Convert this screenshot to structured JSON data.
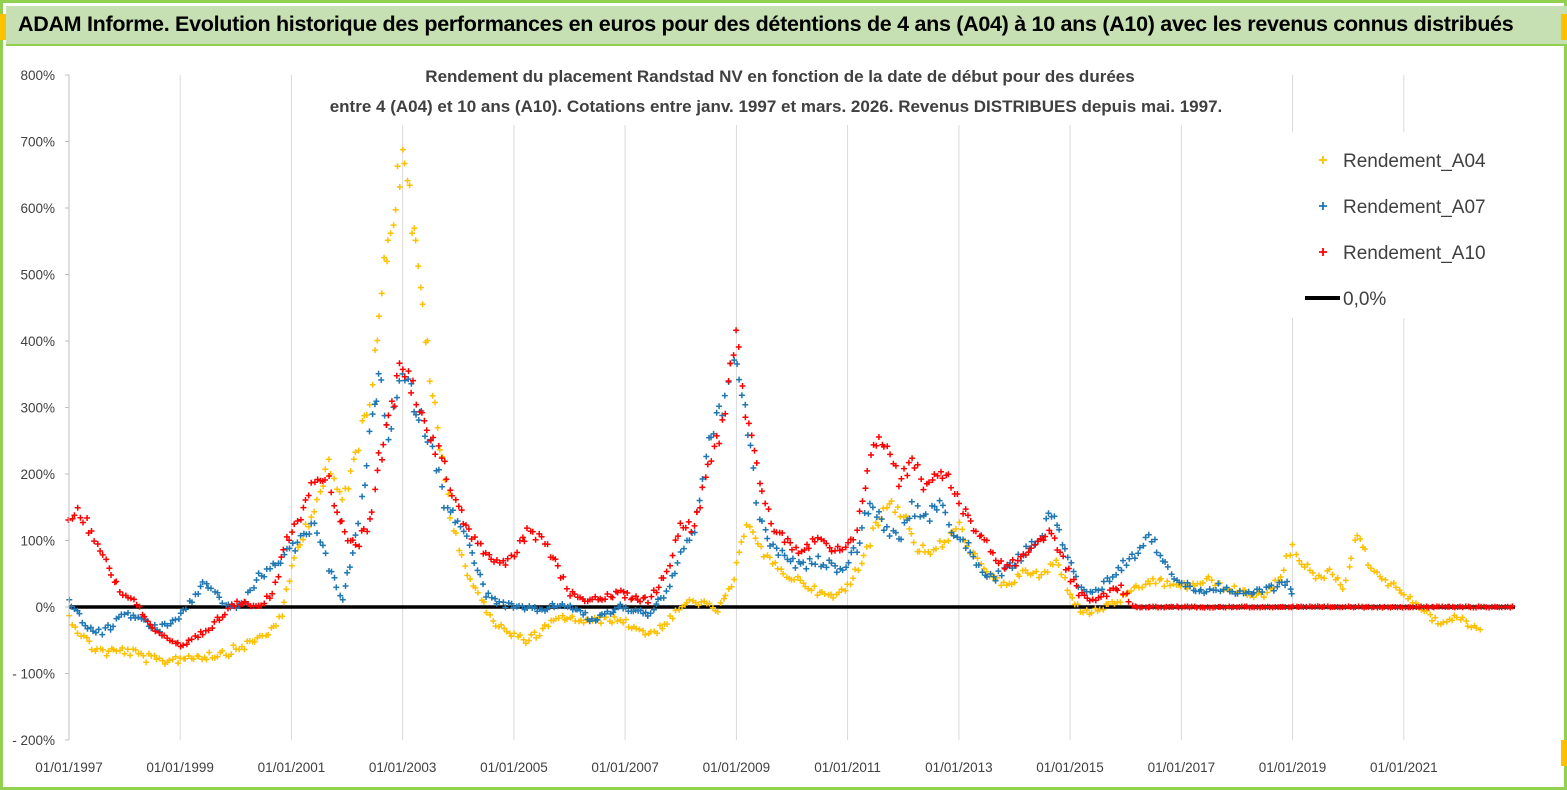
{
  "banner": {
    "title": "ADAM Informe. Evolution historique des performances en euros pour des détentions de 4 ans (A04) à 10 ans (A10) avec les revenus connus distribués"
  },
  "colors": {
    "frame": "#92d050",
    "banner_bg": "#c6e0b4",
    "A04": "#ffc000",
    "A07": "#1f77b4",
    "A10": "#ff0000",
    "zero_line": "#000000"
  },
  "chart_data": {
    "type": "scatter",
    "title_line1": "Rendement du placement Randstad NV en fonction de la date de début pour des durées",
    "title_line2": "entre 4 (A04) et 10 ans (A10).  Cotations entre janv. 1997 et mars. 2026. Revenus DISTRIBUES depuis mai. 1997.",
    "xlabel": "",
    "ylabel": "",
    "x_range": [
      "1997-01-01",
      "2023-01-01"
    ],
    "y_range_pct": [
      -200,
      800
    ],
    "y_ticks": [
      "800%",
      "700%",
      "600%",
      "500%",
      "400%",
      "300%",
      "200%",
      "100%",
      "0%",
      "- 100%",
      "- 200%"
    ],
    "x_ticks": [
      "01/01/1997",
      "01/01/1999",
      "01/01/2001",
      "01/01/2003",
      "01/01/2005",
      "01/01/2007",
      "01/01/2009",
      "01/01/2011",
      "01/01/2013",
      "01/01/2015",
      "01/01/2017",
      "01/01/2019",
      "01/01/2021"
    ],
    "grid": "vertical",
    "legend_position": "top-right",
    "marker": "+",
    "series": [
      {
        "name": "Rendement_A04",
        "color": "#ffc000",
        "points": [
          [
            "1997-01-01",
            -15
          ],
          [
            "1997-03-01",
            -35
          ],
          [
            "1997-06-01",
            -60
          ],
          [
            "1997-09-01",
            -68
          ],
          [
            "1998-01-01",
            -65
          ],
          [
            "1998-04-01",
            -72
          ],
          [
            "1998-08-01",
            -82
          ],
          [
            "1998-12-01",
            -78
          ],
          [
            "1999-04-01",
            -74
          ],
          [
            "1999-08-01",
            -72
          ],
          [
            "1999-12-01",
            -66
          ],
          [
            "2000-04-01",
            -55
          ],
          [
            "2000-08-01",
            -38
          ],
          [
            "2000-11-01",
            -15
          ],
          [
            "2001-01-01",
            60
          ],
          [
            "2001-03-01",
            100
          ],
          [
            "2001-06-01",
            150
          ],
          [
            "2001-09-01",
            210
          ],
          [
            "2001-12-01",
            160
          ],
          [
            "2002-03-01",
            230
          ],
          [
            "2002-06-01",
            320
          ],
          [
            "2002-08-01",
            450
          ],
          [
            "2002-10-01",
            560
          ],
          [
            "2002-12-01",
            640
          ],
          [
            "2003-01-15",
            690
          ],
          [
            "2003-03-01",
            580
          ],
          [
            "2003-05-01",
            480
          ],
          [
            "2003-07-01",
            350
          ],
          [
            "2003-09-01",
            240
          ],
          [
            "2003-12-01",
            120
          ],
          [
            "2004-03-01",
            50
          ],
          [
            "2004-06-01",
            10
          ],
          [
            "2004-09-01",
            -25
          ],
          [
            "2004-12-01",
            -40
          ],
          [
            "2005-03-01",
            -50
          ],
          [
            "2005-06-01",
            -42
          ],
          [
            "2005-09-01",
            -25
          ],
          [
            "2005-12-01",
            -15
          ],
          [
            "2006-03-01",
            -20
          ],
          [
            "2006-06-01",
            -22
          ],
          [
            "2006-09-01",
            -18
          ],
          [
            "2006-12-01",
            -20
          ],
          [
            "2007-03-01",
            -30
          ],
          [
            "2007-06-01",
            -40
          ],
          [
            "2007-09-01",
            -30
          ],
          [
            "2007-12-01",
            -10
          ],
          [
            "2008-03-01",
            10
          ],
          [
            "2008-06-01",
            5
          ],
          [
            "2008-09-01",
            -5
          ],
          [
            "2008-12-01",
            30
          ],
          [
            "2009-02-01",
            90
          ],
          [
            "2009-04-01",
            130
          ],
          [
            "2009-07-01",
            80
          ],
          [
            "2009-10-01",
            55
          ],
          [
            "2010-01-01",
            45
          ],
          [
            "2010-04-01",
            35
          ],
          [
            "2010-07-01",
            20
          ],
          [
            "2010-10-01",
            15
          ],
          [
            "2011-01-01",
            30
          ],
          [
            "2011-04-01",
            70
          ],
          [
            "2011-07-01",
            120
          ],
          [
            "2011-10-01",
            160
          ],
          [
            "2012-01-01",
            140
          ],
          [
            "2012-04-01",
            90
          ],
          [
            "2012-07-01",
            80
          ],
          [
            "2012-10-01",
            100
          ],
          [
            "2013-01-01",
            120
          ],
          [
            "2013-04-01",
            80
          ],
          [
            "2013-07-01",
            50
          ],
          [
            "2013-10-01",
            35
          ],
          [
            "2014-01-01",
            40
          ],
          [
            "2014-04-01",
            55
          ],
          [
            "2014-07-01",
            45
          ],
          [
            "2014-10-01",
            70
          ],
          [
            "2015-01-01",
            20
          ],
          [
            "2015-04-01",
            -10
          ],
          [
            "2015-07-01",
            -5
          ],
          [
            "2015-10-01",
            5
          ],
          [
            "2016-01-01",
            15
          ],
          [
            "2016-04-01",
            30
          ],
          [
            "2016-07-01",
            40
          ],
          [
            "2016-10-01",
            35
          ],
          [
            "2017-01-01",
            30
          ],
          [
            "2017-04-01",
            35
          ],
          [
            "2017-07-01",
            40
          ],
          [
            "2017-10-01",
            30
          ],
          [
            "2018-01-01",
            25
          ],
          [
            "2018-04-01",
            20
          ],
          [
            "2018-07-01",
            15
          ],
          [
            "2018-10-01",
            40
          ],
          [
            "2019-01-01",
            90
          ],
          [
            "2019-03-01",
            70
          ],
          [
            "2019-06-01",
            40
          ],
          [
            "2019-09-01",
            55
          ],
          [
            "2019-12-01",
            30
          ],
          [
            "2020-03-01",
            110
          ],
          [
            "2020-06-01",
            60
          ],
          [
            "2020-09-01",
            40
          ],
          [
            "2020-12-01",
            25
          ],
          [
            "2021-03-01",
            10
          ],
          [
            "2021-06-01",
            -10
          ],
          [
            "2021-09-01",
            -25
          ],
          [
            "2021-12-01",
            -15
          ],
          [
            "2022-03-01",
            -25
          ],
          [
            "2022-06-01",
            -35
          ]
        ]
      },
      {
        "name": "Rendement_A07",
        "color": "#1f77b4",
        "points": [
          [
            "1997-01-01",
            10
          ],
          [
            "1997-04-01",
            -20
          ],
          [
            "1997-07-01",
            -40
          ],
          [
            "1997-10-01",
            -30
          ],
          [
            "1998-01-01",
            -10
          ],
          [
            "1998-04-01",
            -15
          ],
          [
            "1998-08-01",
            -35
          ],
          [
            "1998-12-01",
            -20
          ],
          [
            "1999-03-01",
            5
          ],
          [
            "1999-06-01",
            35
          ],
          [
            "1999-09-01",
            20
          ],
          [
            "1999-12-01",
            -5
          ],
          [
            "2000-03-01",
            10
          ],
          [
            "2000-06-01",
            45
          ],
          [
            "2000-09-01",
            60
          ],
          [
            "2000-12-01",
            80
          ],
          [
            "2001-03-01",
            100
          ],
          [
            "2001-06-01",
            130
          ],
          [
            "2001-09-01",
            60
          ],
          [
            "2001-12-01",
            10
          ],
          [
            "2002-03-01",
            100
          ],
          [
            "2002-06-01",
            250
          ],
          [
            "2002-08-01",
            350
          ],
          [
            "2002-10-01",
            250
          ],
          [
            "2003-01-01",
            350
          ],
          [
            "2003-04-01",
            300
          ],
          [
            "2003-07-01",
            250
          ],
          [
            "2003-10-01",
            160
          ],
          [
            "2004-01-01",
            130
          ],
          [
            "2004-04-01",
            80
          ],
          [
            "2004-07-01",
            20
          ],
          [
            "2004-10-01",
            5
          ],
          [
            "2005-01-01",
            0
          ],
          [
            "2005-06-01",
            -5
          ],
          [
            "2005-12-01",
            5
          ],
          [
            "2006-06-01",
            -20
          ],
          [
            "2006-12-01",
            0
          ],
          [
            "2007-06-01",
            -10
          ],
          [
            "2007-10-01",
            20
          ],
          [
            "2008-01-01",
            80
          ],
          [
            "2008-04-01",
            110
          ],
          [
            "2008-07-01",
            250
          ],
          [
            "2008-10-01",
            300
          ],
          [
            "2009-01-01",
            380
          ],
          [
            "2009-03-01",
            300
          ],
          [
            "2009-06-01",
            130
          ],
          [
            "2009-09-01",
            90
          ],
          [
            "2009-12-01",
            70
          ],
          [
            "2010-03-01",
            60
          ],
          [
            "2010-06-01",
            70
          ],
          [
            "2010-09-01",
            65
          ],
          [
            "2010-12-01",
            55
          ],
          [
            "2011-03-01",
            90
          ],
          [
            "2011-06-01",
            160
          ],
          [
            "2011-09-01",
            120
          ],
          [
            "2011-12-01",
            100
          ],
          [
            "2012-03-01",
            150
          ],
          [
            "2012-06-01",
            130
          ],
          [
            "2012-09-01",
            160
          ],
          [
            "2012-12-01",
            110
          ],
          [
            "2013-03-01",
            90
          ],
          [
            "2013-06-01",
            50
          ],
          [
            "2013-09-01",
            45
          ],
          [
            "2013-12-01",
            60
          ],
          [
            "2014-03-01",
            80
          ],
          [
            "2014-06-01",
            100
          ],
          [
            "2014-09-01",
            140
          ],
          [
            "2014-12-01",
            90
          ],
          [
            "2015-03-01",
            30
          ],
          [
            "2015-06-01",
            20
          ],
          [
            "2015-09-01",
            40
          ],
          [
            "2015-12-01",
            60
          ],
          [
            "2016-03-01",
            80
          ],
          [
            "2016-06-01",
            110
          ],
          [
            "2016-09-01",
            70
          ],
          [
            "2016-12-01",
            40
          ],
          [
            "2017-03-01",
            30
          ],
          [
            "2017-06-01",
            25
          ],
          [
            "2017-09-01",
            30
          ],
          [
            "2017-12-01",
            20
          ],
          [
            "2018-03-01",
            20
          ],
          [
            "2018-06-01",
            25
          ],
          [
            "2018-09-01",
            30
          ],
          [
            "2018-12-01",
            40
          ],
          [
            "2019-01-15",
            5
          ]
        ]
      },
      {
        "name": "Rendement_A10",
        "color": "#ff0000",
        "points": [
          [
            "1997-01-01",
            130
          ],
          [
            "1997-03-01",
            150
          ],
          [
            "1997-06-01",
            110
          ],
          [
            "1997-09-01",
            70
          ],
          [
            "1997-12-01",
            25
          ],
          [
            "1998-03-01",
            10
          ],
          [
            "1998-06-01",
            -20
          ],
          [
            "1998-09-01",
            -45
          ],
          [
            "1998-12-01",
            -60
          ],
          [
            "1999-03-01",
            -55
          ],
          [
            "1999-06-01",
            -40
          ],
          [
            "1999-09-01",
            -20
          ],
          [
            "1999-12-01",
            0
          ],
          [
            "2000-03-01",
            10
          ],
          [
            "2000-06-01",
            0
          ],
          [
            "2000-09-01",
            20
          ],
          [
            "2000-12-01",
            100
          ],
          [
            "2001-03-01",
            140
          ],
          [
            "2001-06-01",
            200
          ],
          [
            "2001-09-01",
            190
          ],
          [
            "2001-12-01",
            120
          ],
          [
            "2002-03-01",
            90
          ],
          [
            "2002-06-01",
            130
          ],
          [
            "2002-08-01",
            220
          ],
          [
            "2002-10-01",
            280
          ],
          [
            "2003-01-01",
            370
          ],
          [
            "2003-04-01",
            320
          ],
          [
            "2003-07-01",
            260
          ],
          [
            "2003-10-01",
            210
          ],
          [
            "2004-01-01",
            150
          ],
          [
            "2004-04-01",
            110
          ],
          [
            "2004-07-01",
            80
          ],
          [
            "2004-10-01",
            60
          ],
          [
            "2005-01-01",
            80
          ],
          [
            "2005-04-01",
            110
          ],
          [
            "2005-07-01",
            100
          ],
          [
            "2005-10-01",
            70
          ],
          [
            "2006-01-01",
            20
          ],
          [
            "2006-06-01",
            10
          ],
          [
            "2006-12-01",
            20
          ],
          [
            "2007-06-01",
            10
          ],
          [
            "2007-10-01",
            50
          ],
          [
            "2008-01-01",
            130
          ],
          [
            "2008-04-01",
            120
          ],
          [
            "2008-07-01",
            220
          ],
          [
            "2008-10-01",
            270
          ],
          [
            "2009-01-01",
            430
          ],
          [
            "2009-03-01",
            300
          ],
          [
            "2009-06-01",
            180
          ],
          [
            "2009-09-01",
            120
          ],
          [
            "2009-12-01",
            100
          ],
          [
            "2010-03-01",
            80
          ],
          [
            "2010-06-01",
            100
          ],
          [
            "2010-09-01",
            90
          ],
          [
            "2010-12-01",
            80
          ],
          [
            "2011-03-01",
            110
          ],
          [
            "2011-06-01",
            240
          ],
          [
            "2011-09-01",
            250
          ],
          [
            "2011-12-01",
            190
          ],
          [
            "2012-03-01",
            220
          ],
          [
            "2012-06-01",
            180
          ],
          [
            "2012-09-01",
            210
          ],
          [
            "2012-12-01",
            180
          ],
          [
            "2013-03-01",
            130
          ],
          [
            "2013-06-01",
            110
          ],
          [
            "2013-09-01",
            70
          ],
          [
            "2013-12-01",
            60
          ],
          [
            "2014-03-01",
            80
          ],
          [
            "2014-06-01",
            100
          ],
          [
            "2014-09-01",
            110
          ],
          [
            "2014-12-01",
            60
          ],
          [
            "2015-03-01",
            20
          ],
          [
            "2015-06-01",
            10
          ],
          [
            "2015-09-01",
            20
          ],
          [
            "2015-12-01",
            30
          ],
          [
            "2016-03-01",
            0
          ],
          [
            "2023-01-01",
            0
          ]
        ]
      }
    ],
    "legend": [
      {
        "label": "Rendement_A04",
        "marker": "+",
        "color": "#ffc000"
      },
      {
        "label": "Rendement_A07",
        "marker": "+",
        "color": "#1f77b4"
      },
      {
        "label": "Rendement_A10",
        "marker": "+",
        "color": "#ff0000"
      },
      {
        "label": "0,0%",
        "marker": "line",
        "color": "#000000"
      }
    ]
  }
}
